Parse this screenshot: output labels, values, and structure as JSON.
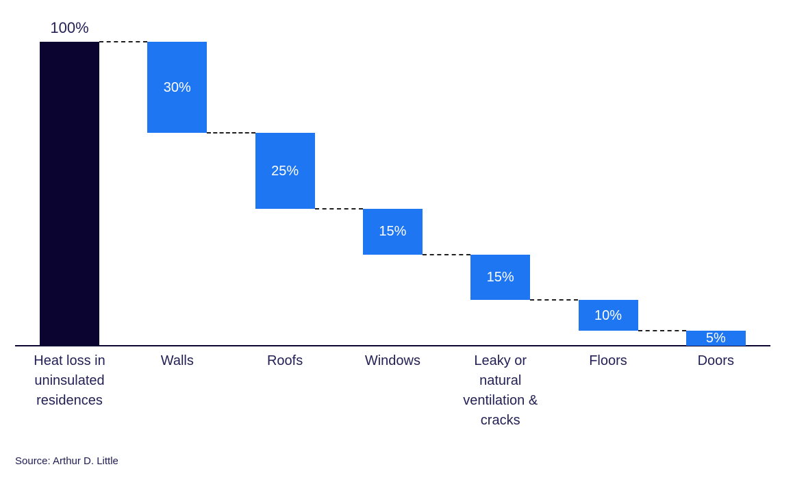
{
  "chart_data": {
    "type": "bar",
    "subtype": "waterfall",
    "title": "",
    "xlabel": "",
    "ylabel": "",
    "ylim": [
      0,
      100
    ],
    "grid": false,
    "legend": false,
    "categories": [
      "Heat loss in uninsulated residences",
      "Walls",
      "Roofs",
      "Windows",
      "Leaky or natural ventilation & cracks",
      "Floors",
      "Doors"
    ],
    "values": [
      100,
      30,
      25,
      15,
      15,
      10,
      5
    ],
    "value_labels": [
      "100%",
      "30%",
      "25%",
      "15%",
      "15%",
      "10%",
      "5%"
    ],
    "bar_roles": [
      "total",
      "delta",
      "delta",
      "delta",
      "delta",
      "delta",
      "delta"
    ],
    "colors": {
      "total_bar": "#0b0330",
      "delta_bar": "#1e76f2",
      "value_label_on_total": "#221f55",
      "value_label_on_delta": "#ffffff",
      "category_label": "#221f55",
      "axis_line": "#0b0330",
      "connector_line": "#1f1f1f",
      "source_text": "#1e1b52"
    }
  },
  "source": {
    "label": "Source: Arthur D. Little"
  }
}
